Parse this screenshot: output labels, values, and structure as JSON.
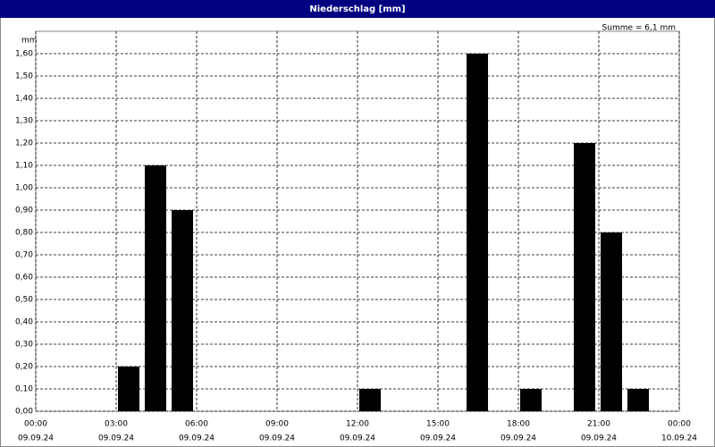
{
  "chart_data": {
    "type": "bar",
    "title": "Niederschlag [mm]",
    "y_label": "mm",
    "annotation": "Summe = 6,1 mm",
    "x": [
      3,
      4,
      5,
      12,
      16,
      18,
      20,
      21,
      22
    ],
    "values": [
      0.2,
      1.1,
      0.9,
      0.1,
      1.6,
      0.1,
      1.2,
      0.8,
      0.1
    ],
    "color": "#000000",
    "xlim": [
      0,
      24
    ],
    "xticks": [
      {
        "value": 0,
        "label": "00:00",
        "date": "09.09.24"
      },
      {
        "value": 3,
        "label": "03:00",
        "date": "09.09.24"
      },
      {
        "value": 6,
        "label": "06:00",
        "date": "09.09.24"
      },
      {
        "value": 9,
        "label": "09:00",
        "date": "09.09.24"
      },
      {
        "value": 12,
        "label": "12:00",
        "date": "09.09.24"
      },
      {
        "value": 15,
        "label": "15:00",
        "date": "09.09.24"
      },
      {
        "value": 18,
        "label": "18:00",
        "date": "09.09.24"
      },
      {
        "value": 21,
        "label": "21:00",
        "date": "09.09.24"
      },
      {
        "value": 24,
        "label": "00:00",
        "date": "10.09.24"
      }
    ],
    "ylim": [
      0,
      1.7
    ],
    "yticks": [
      {
        "value": 0,
        "label": "0,00"
      },
      {
        "value": 0.1,
        "label": "0,10"
      },
      {
        "value": 0.2,
        "label": "0,20"
      },
      {
        "value": 0.3,
        "label": "0,30"
      },
      {
        "value": 0.4,
        "label": "0,40"
      },
      {
        "value": 0.5,
        "label": "0,50"
      },
      {
        "value": 0.6,
        "label": "0,60"
      },
      {
        "value": 0.7,
        "label": "0,70"
      },
      {
        "value": 0.8,
        "label": "0,80"
      },
      {
        "value": 0.9,
        "label": "0,90"
      },
      {
        "value": 1.0,
        "label": "1,00"
      },
      {
        "value": 1.1,
        "label": "1,10"
      },
      {
        "value": 1.2,
        "label": "1,20"
      },
      {
        "value": 1.3,
        "label": "1,30"
      },
      {
        "value": 1.4,
        "label": "1,40"
      },
      {
        "value": 1.5,
        "label": "1,50"
      },
      {
        "value": 1.6,
        "label": "1,60"
      }
    ],
    "grid": true
  }
}
